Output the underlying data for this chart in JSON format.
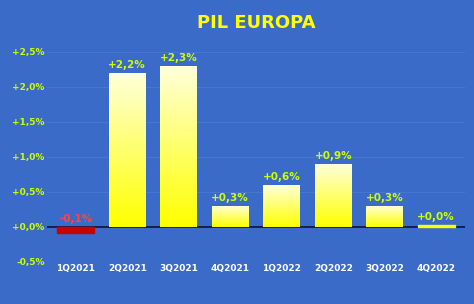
{
  "title": "PIL EUROPA",
  "categories": [
    "1Q2021",
    "2Q2021",
    "3Q2021",
    "4Q2021",
    "1Q2022",
    "2Q2022",
    "3Q2022",
    "4Q2022"
  ],
  "values": [
    -0.1,
    2.2,
    2.3,
    0.3,
    0.6,
    0.9,
    0.3,
    0.0
  ],
  "labels": [
    "-0,1%",
    "+2,2%",
    "+2,3%",
    "+0,3%",
    "+0,6%",
    "+0,9%",
    "+0,3%",
    "+0,0%"
  ],
  "bar_color_negative": "#CC0000",
  "background_color": "#3A6BC8",
  "title_color": "#FFFF00",
  "label_color_positive": "#CCFF00",
  "label_color_negative": "#FF4444",
  "ytick_labels": [
    "-0,5%",
    "+0,0%",
    "+0,5%",
    "+1,0%",
    "+1,5%",
    "+2,0%",
    "+2,5%"
  ],
  "ytick_values": [
    -0.5,
    0.0,
    0.5,
    1.0,
    1.5,
    2.0,
    2.5
  ],
  "ylim": [
    -0.28,
    2.72
  ],
  "grid_color": "#5588DD",
  "title_fontsize": 13,
  "label_fontsize": 7.5,
  "tick_fontsize": 6.5
}
